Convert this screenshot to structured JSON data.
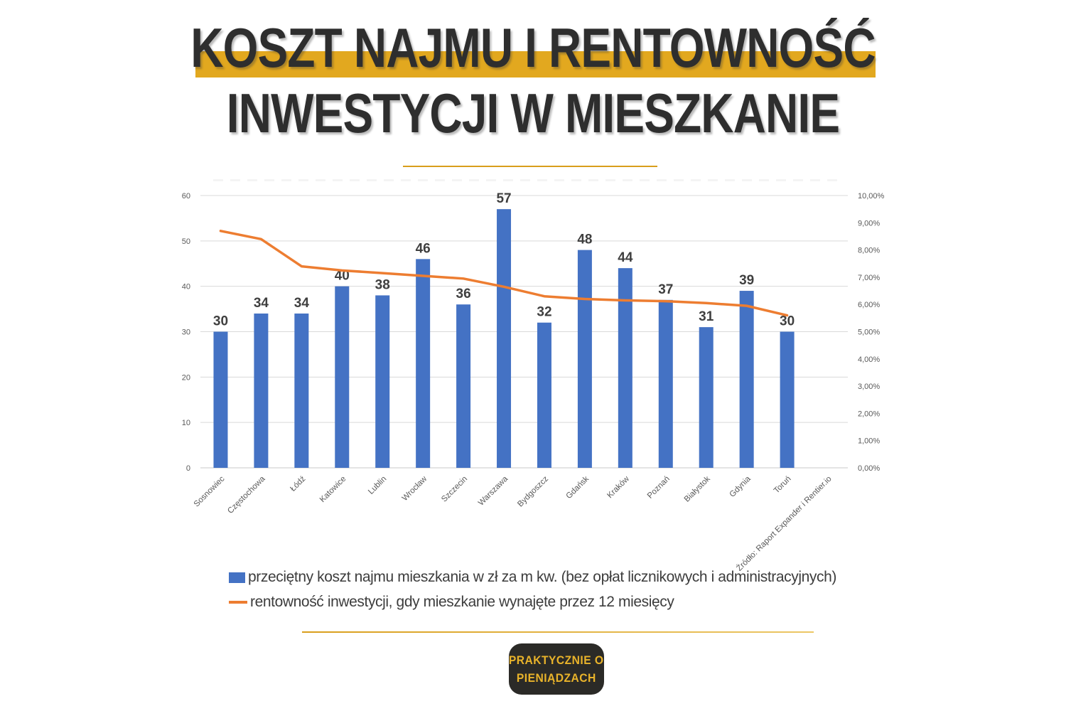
{
  "title": {
    "line1": "KOSZT NAJMU I RENTOWNOŚĆ",
    "line2": "INWESTYCJI W MIESZKANIE",
    "highlight_color": "#E2A81F",
    "text_color": "#2E2E2E"
  },
  "chart_data": {
    "type": "bar",
    "subtype": "bar-and-line-combo",
    "categories": [
      "Sosnowiec",
      "Częstochowa",
      "Łódź",
      "Katowice",
      "Lublin",
      "Wrocław",
      "Szczecin",
      "Warszawa",
      "Bydgoszcz",
      "Gdańsk",
      "Kraków",
      "Poznań",
      "Białystok",
      "Gdynia",
      "Toruń"
    ],
    "series": [
      {
        "name": "przeciętny koszt najmu mieszkania w zł za m kw. (bez opłat licznikowych i administracyjnych)",
        "type": "bar",
        "axis": "left",
        "color": "#4472C4",
        "values": [
          30,
          34,
          34,
          40,
          38,
          46,
          36,
          57,
          32,
          48,
          44,
          37,
          31,
          39,
          30
        ]
      },
      {
        "name": "rentowność inwestycji, gdy mieszkanie wynajęte przez 12 miesięcy",
        "type": "line",
        "axis": "right",
        "color": "#ED7D31",
        "values_percent": [
          8.7,
          8.4,
          7.4,
          7.25,
          7.15,
          7.05,
          6.95,
          6.65,
          6.3,
          6.2,
          6.15,
          6.12,
          6.05,
          5.95,
          5.6
        ]
      }
    ],
    "left_axis": {
      "min": 0,
      "max": 60,
      "step": 10,
      "tick_labels": [
        "0",
        "10",
        "20",
        "30",
        "40",
        "50",
        "60"
      ]
    },
    "right_axis": {
      "min": 0,
      "max": 10,
      "step": 1,
      "tick_labels": [
        "0,00%",
        "1,00%",
        "2,00%",
        "3,00%",
        "4,00%",
        "5,00%",
        "6,00%",
        "7,00%",
        "8,00%",
        "9,00%",
        "10,00%"
      ]
    },
    "grid": true,
    "legend_position": "bottom-left",
    "source_label": "Źródło: Raport Expander i Rentier.io",
    "data_labels_shown": true
  },
  "legend": {
    "items": [
      {
        "swatch": "bar",
        "color": "#4472C4",
        "label": "przeciętny koszt najmu mieszkania w zł za m kw. (bez opłat licznikowych i administracyjnych)"
      },
      {
        "swatch": "line",
        "color": "#ED7D31",
        "label": "rentowność inwestycji, gdy mieszkanie wynajęte przez 12 miesięcy"
      }
    ]
  },
  "logo": {
    "line1": "PRAKTYCZNIE O",
    "line2": "PIENIĄDZACH",
    "bg_color": "#2B2A27",
    "text_color": "#E9B32A"
  },
  "decor": {
    "top_rule_color": "#D99E1B",
    "bottom_rule_gradient_left": "#D99E1B",
    "bottom_rule_gradient_right": "#ECC766",
    "gridline_color": "#D9D9D9"
  }
}
